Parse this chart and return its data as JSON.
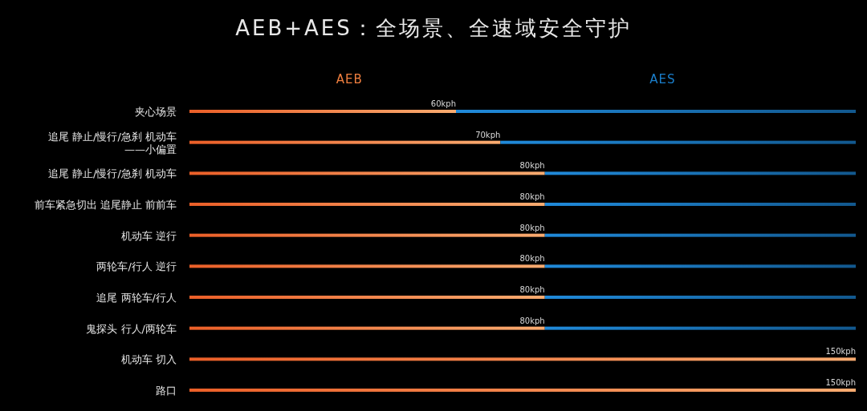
{
  "chart_data": {
    "type": "bar",
    "orientation": "horizontal",
    "stacked": true,
    "title": "AEB+AES：全场景、全速域安全守护",
    "categories": [
      "夹心场景",
      "追尾 静止/慢行/急刹 机动车\n——小偏置",
      "追尾 静止/慢行/急刹 机动车",
      "前车紧急切出 追尾静止 前前车",
      "机动车 逆行",
      "两轮车/行人 逆行",
      "追尾 两轮车/行人",
      "鬼探头 行人/两轮车",
      "机动车 切入",
      "路口"
    ],
    "series": [
      {
        "name": "AEB",
        "color": "#f07f3f",
        "values": [
          60,
          70,
          80,
          80,
          80,
          80,
          80,
          80,
          150,
          150
        ],
        "value_labels": [
          "60kph",
          "70kph",
          "80kph",
          "80kph",
          "80kph",
          "80kph",
          "80kph",
          "80kph",
          "150kph",
          "150kph"
        ]
      },
      {
        "name": "AES",
        "color": "#1a7fcc",
        "values": [
          90,
          80,
          70,
          70,
          70,
          70,
          70,
          70,
          null,
          null
        ]
      }
    ],
    "xlim": [
      0,
      150
    ],
    "legend": "top",
    "tick_labels": "y"
  }
}
